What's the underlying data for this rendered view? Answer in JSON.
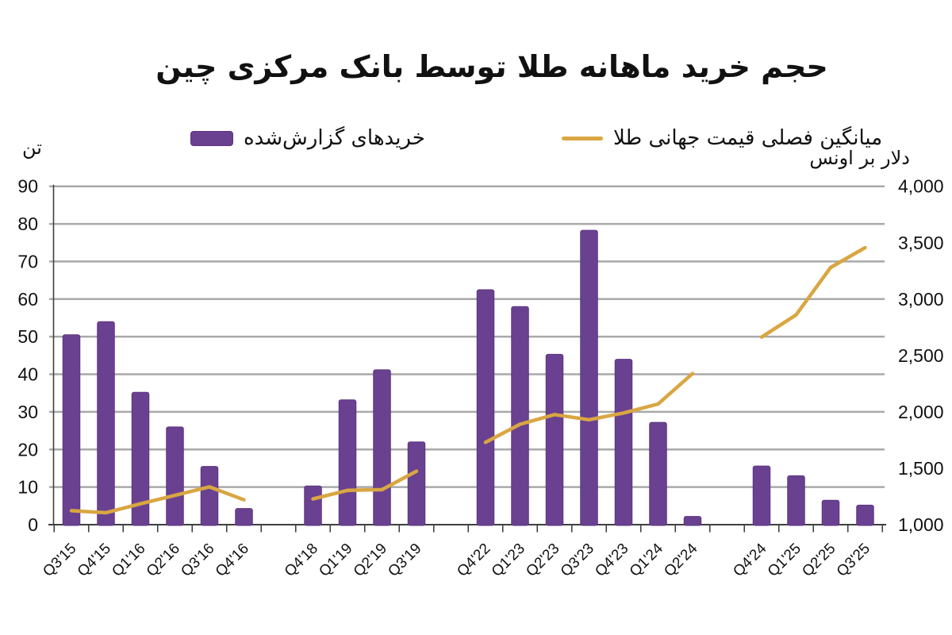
{
  "title": "حجم خرید ماهانه طلا توسط بانک مرکزی چین",
  "legend": {
    "bars": "خریدهای گزارش‌شده",
    "line": "میانگین فصلی قیمت جهانی طلا"
  },
  "axes": {
    "left_unit": "تن",
    "right_unit": "دلار بر اونس"
  },
  "colors": {
    "bar": "#6a4190",
    "bar_border": "#5c3480",
    "line": "#d9a642",
    "grid": "#a9a9a9",
    "axis": "#3f3f3f",
    "text": "#111111"
  },
  "chart_data": {
    "type": "bar+line",
    "title": "حجم خرید ماهانه طلا توسط بانک مرکزی چین",
    "categories": [
      "Q3'15",
      "Q4'15",
      "Q1'16",
      "Q2'16",
      "Q3'16",
      "Q4'16",
      "",
      "Q4'18",
      "Q1'19",
      "Q2'19",
      "Q3'19",
      "",
      "Q4'22",
      "Q1'23",
      "Q2'23",
      "Q3'23",
      "Q4'23",
      "Q1'24",
      "Q2'24",
      "",
      "Q4'24",
      "Q1'25",
      "Q2'25",
      "Q3'25"
    ],
    "series": [
      {
        "name": "خریدهای گزارش‌شده",
        "type": "bar",
        "yaxis": "left",
        "color": "#6a4190",
        "values": [
          50.5,
          54,
          35.2,
          26,
          15.5,
          4.3,
          null,
          10.3,
          33.2,
          41.2,
          22,
          null,
          62.5,
          58,
          45.3,
          78.3,
          44,
          27.2,
          2.2,
          null,
          15.6,
          13,
          6.5,
          5.2
        ]
      },
      {
        "name": "میانگین فصلی قیمت جهانی طلا",
        "type": "line",
        "yaxis": "right",
        "color": "#d9a642",
        "values": [
          1124,
          1106,
          1185,
          1260,
          1335,
          1220,
          null,
          1228,
          1304,
          1310,
          1474,
          null,
          1730,
          1890,
          1976,
          1930,
          1990,
          2070,
          2340,
          null,
          2663,
          2860,
          3280,
          3456
        ]
      }
    ],
    "left_axis": {
      "label": "تن",
      "min": 0,
      "max": 90,
      "ticks": [
        0,
        10,
        20,
        30,
        40,
        50,
        60,
        70,
        80,
        90
      ]
    },
    "right_axis": {
      "label": "دلار بر اونس",
      "min": 1000,
      "max": 4000,
      "ticks": [
        1000,
        1500,
        2000,
        2500,
        3000,
        3500,
        4000
      ],
      "tick_labels": [
        "1,000",
        "1,500",
        "2,000",
        "2,500",
        "3,000",
        "3,500",
        "4,000"
      ]
    },
    "grid": true,
    "legend_position": "top"
  }
}
